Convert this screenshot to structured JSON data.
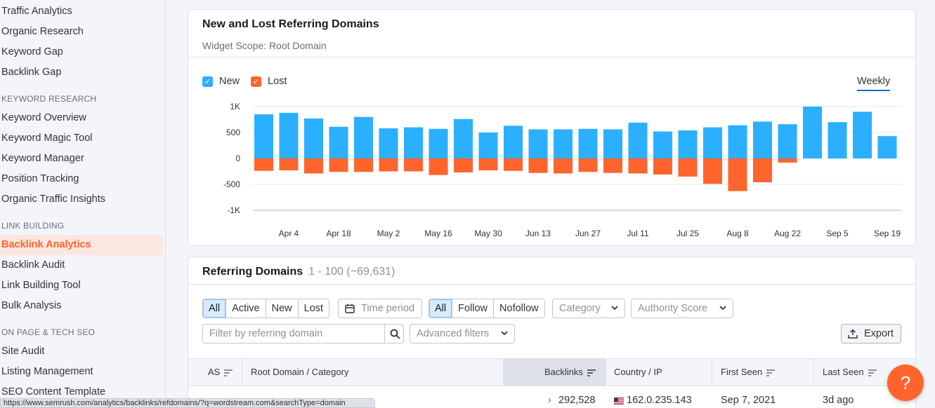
{
  "sidebar": {
    "items": [
      {
        "type": "item",
        "label": "Traffic Analytics",
        "top": 8
      },
      {
        "type": "item",
        "label": "Organic Research",
        "top": 37
      },
      {
        "type": "item",
        "label": "Keyword Gap",
        "top": 66
      },
      {
        "type": "item",
        "label": "Backlink Gap",
        "top": 95
      },
      {
        "type": "section",
        "label": "KEYWORD RESEARCH",
        "top": 134
      },
      {
        "type": "item",
        "label": "Keyword Overview",
        "top": 160
      },
      {
        "type": "item",
        "label": "Keyword Magic Tool",
        "top": 189
      },
      {
        "type": "item",
        "label": "Keyword Manager",
        "top": 218
      },
      {
        "type": "item",
        "label": "Position Tracking",
        "top": 247
      },
      {
        "type": "item",
        "label": "Organic Traffic Insights",
        "top": 276
      },
      {
        "type": "section",
        "label": "LINK BUILDING",
        "top": 315
      },
      {
        "type": "active",
        "label": "Backlink Analytics",
        "top": 335
      },
      {
        "type": "item",
        "label": "Backlink Audit",
        "top": 370
      },
      {
        "type": "item",
        "label": "Link Building Tool",
        "top": 399
      },
      {
        "type": "item",
        "label": "Bulk Analysis",
        "top": 428
      },
      {
        "type": "section",
        "label": "ON PAGE & TECH SEO",
        "top": 467
      },
      {
        "type": "item",
        "label": "Site Audit",
        "top": 493
      },
      {
        "type": "item",
        "label": "Listing Management",
        "top": 522
      },
      {
        "type": "item",
        "label": "SEO Content Template",
        "top": 551
      }
    ]
  },
  "widget": {
    "title": "New and Lost Referring Domains",
    "scope": "Widget Scope: Root Domain",
    "legend_new": "New",
    "legend_lost": "Lost",
    "period": "Weekly",
    "colors": {
      "new": "#2bafff",
      "lost": "#ff642d",
      "check_new": "#2bafff",
      "check_lost": "#ff642d"
    }
  },
  "chart_data": {
    "type": "bar",
    "ylim": [
      -1000,
      1000
    ],
    "y_ticks": [
      "1K",
      "500",
      "0",
      "-500",
      "-1K"
    ],
    "x_tick_labels": [
      "Apr 4",
      "Apr 18",
      "May 2",
      "May 16",
      "May 30",
      "Jun 13",
      "Jun 27",
      "Jul 11",
      "Jul 25",
      "Aug 8",
      "Aug 22",
      "Sep 5",
      "Sep 19"
    ],
    "series": [
      {
        "name": "New",
        "color": "#2bafff",
        "values": [
          850,
          880,
          770,
          610,
          800,
          580,
          600,
          570,
          760,
          500,
          630,
          560,
          560,
          570,
          560,
          690,
          520,
          540,
          600,
          640,
          710,
          660,
          1000,
          700,
          900,
          430
        ]
      },
      {
        "name": "Lost",
        "color": "#ff642d",
        "values": [
          -240,
          -230,
          -290,
          -260,
          -260,
          -250,
          -250,
          -320,
          -270,
          -230,
          -240,
          -280,
          -290,
          -260,
          -280,
          -290,
          -310,
          -350,
          -490,
          -630,
          -460,
          -80,
          0,
          0,
          0,
          0
        ]
      }
    ]
  },
  "referring": {
    "title": "Referring Domains",
    "count": "1 - 100 (~69,631)",
    "status_filters": [
      "All",
      "Active",
      "New",
      "Lost"
    ],
    "time_period": "Time period",
    "link_filters": [
      "All",
      "Follow",
      "Nofollow"
    ],
    "category": "Category",
    "authority": "Authority Score",
    "search_placeholder": "Filter by referring domain",
    "advanced": "Advanced filters",
    "export": "Export",
    "columns": {
      "as": "AS",
      "root": "Root Domain / Category",
      "backlinks": "Backlinks",
      "country": "Country / IP",
      "first_seen": "First Seen",
      "last_seen": "Last Seen"
    },
    "row": {
      "backlinks": "292,528",
      "ip": "162.0.235.143",
      "first_seen": "Sep 7, 2021",
      "last_seen": "3d ago"
    }
  },
  "help_label": "?",
  "status_url": "https://www.semrush.com/analytics/backlinks/refdomains/?q=wordstream.com&searchType=domain"
}
